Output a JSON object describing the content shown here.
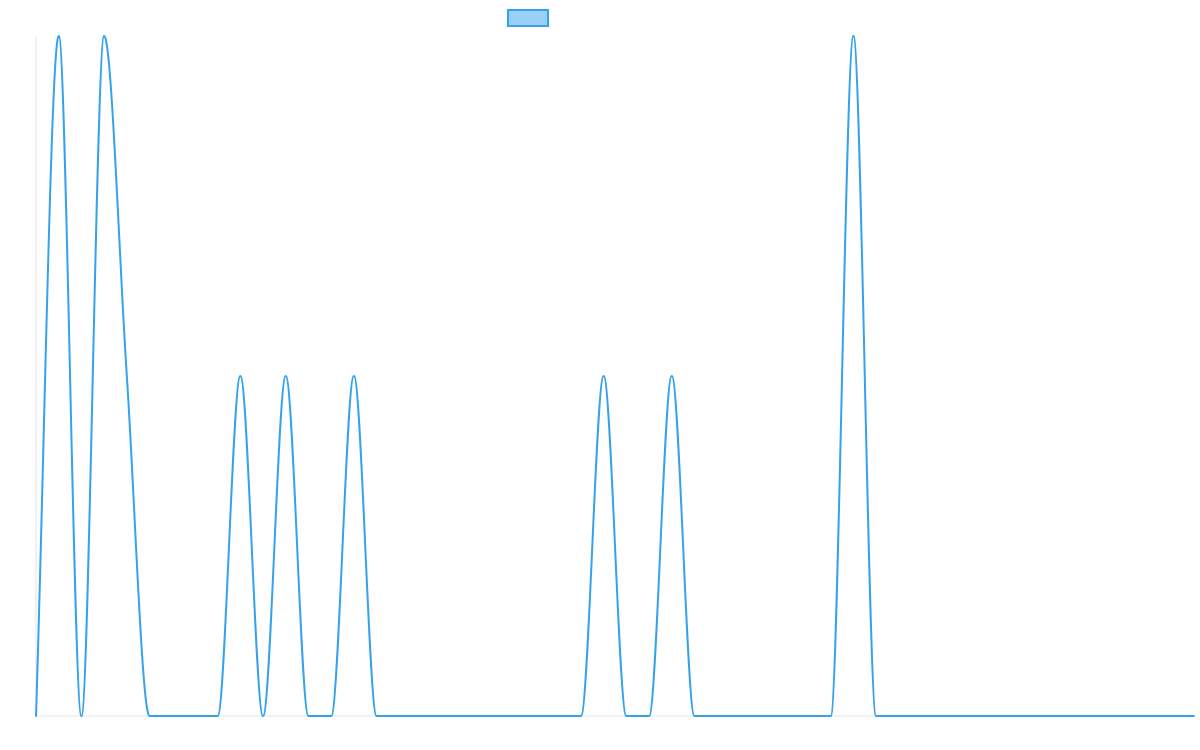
{
  "colors": {
    "series_stroke": "#36a2eb",
    "series_fill": "#9ad0f5",
    "axis": "#e6e6e6",
    "background": "#ffffff"
  },
  "chart_data": {
    "type": "line",
    "title": "",
    "xlabel": "",
    "ylabel": "",
    "grid": false,
    "legend": "top-center",
    "x": [
      0,
      1,
      2,
      3,
      4,
      5,
      6,
      7,
      8,
      9,
      10,
      11,
      12,
      13,
      14,
      15,
      16,
      17,
      18,
      19,
      20,
      21,
      22,
      23,
      24,
      25,
      26,
      27,
      28,
      29,
      30,
      31,
      32,
      33,
      34,
      35,
      36,
      37,
      38,
      39,
      40,
      41,
      42,
      43,
      44,
      45,
      46,
      47,
      48,
      49,
      50,
      51
    ],
    "xlim": [
      0,
      51
    ],
    "ylim": [
      0,
      1
    ],
    "series": [
      {
        "values": [
          0,
          1,
          0,
          1,
          0.5,
          0,
          0,
          0,
          0,
          0.5,
          0,
          0.5,
          0,
          0,
          0.5,
          0,
          0,
          0,
          0,
          0,
          0,
          0,
          0,
          0,
          0,
          0.5,
          0,
          0,
          0.5,
          0,
          0,
          0,
          0,
          0,
          0,
          0,
          1,
          0,
          0,
          0,
          0,
          0,
          0,
          0,
          0,
          0,
          0,
          0,
          0,
          0,
          0,
          0
        ]
      }
    ]
  }
}
